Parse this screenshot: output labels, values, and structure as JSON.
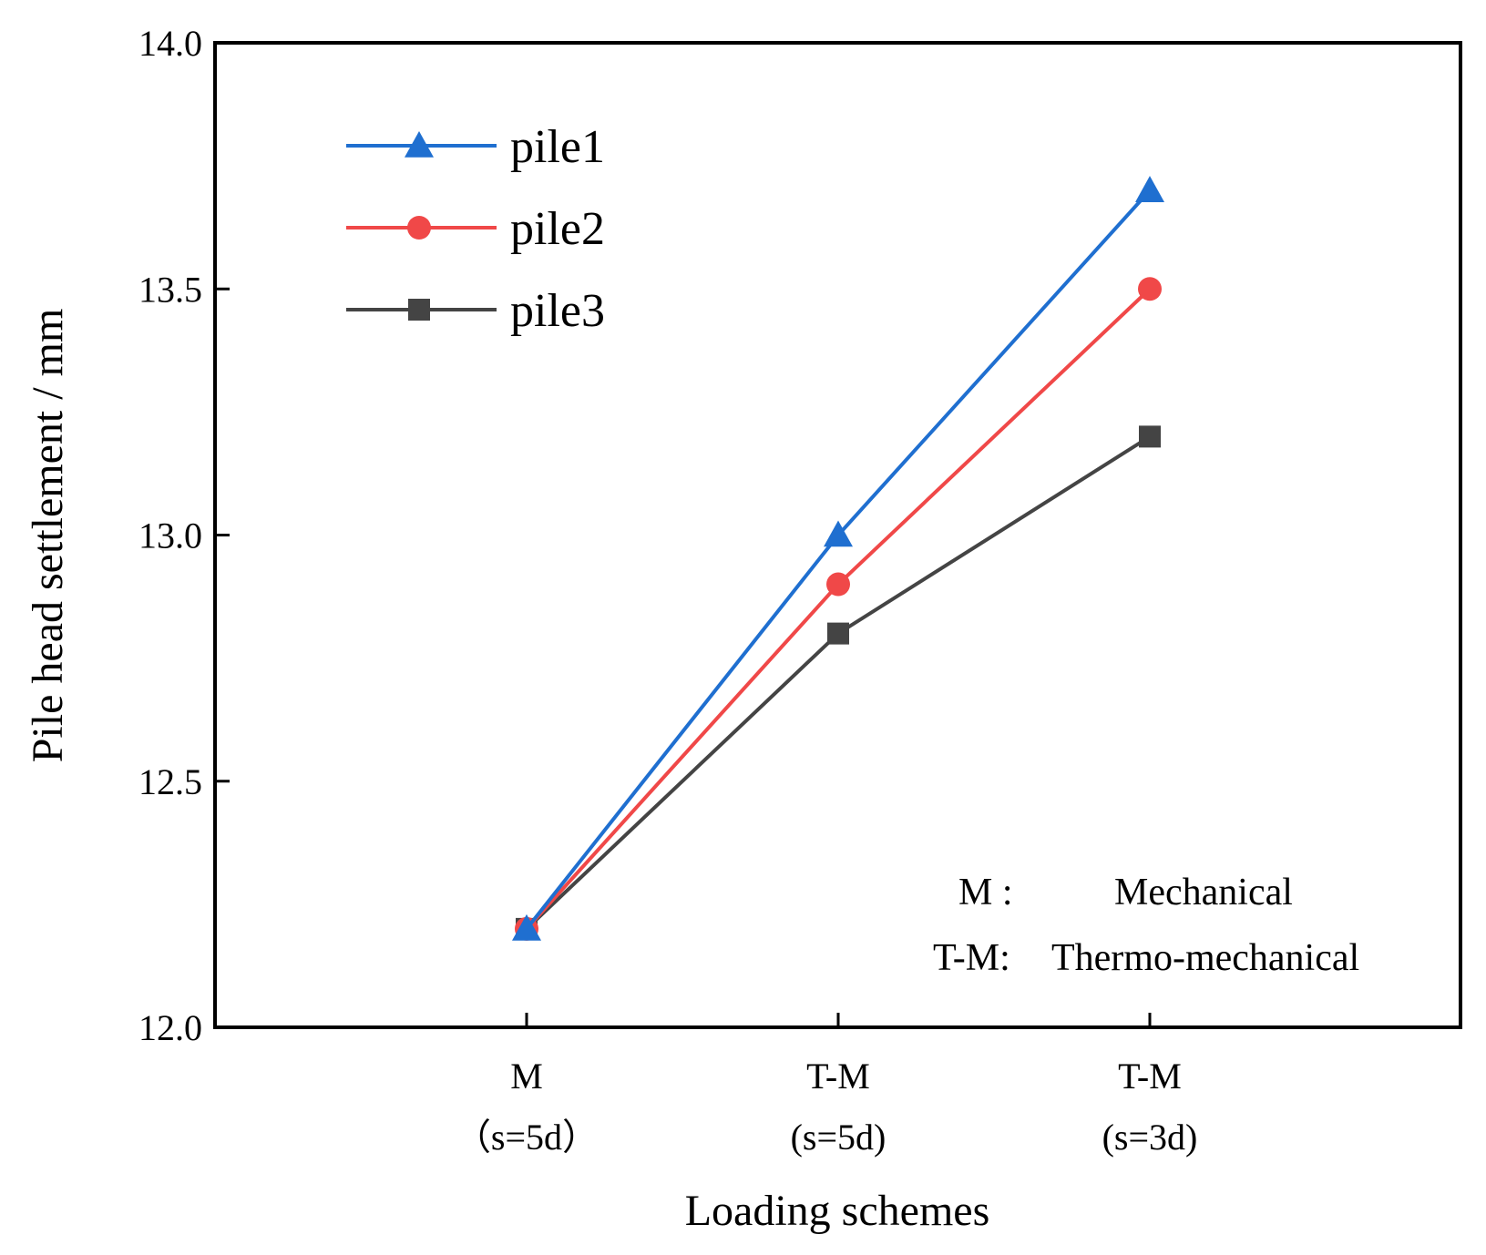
{
  "chart_data": {
    "type": "line",
    "title": "",
    "xlabel": "Loading schemes",
    "ylabel": "Pile head settlement / mm",
    "categories": [
      {
        "line1": "M",
        "line2": "（s=5d）"
      },
      {
        "line1": "T-M",
        "line2": "(s=5d)"
      },
      {
        "line1": "T-M",
        "line2": "(s=3d)"
      }
    ],
    "ylim": [
      12.0,
      14.0
    ],
    "yticks": [
      12.0,
      12.5,
      13.0,
      13.5,
      14.0
    ],
    "ytick_labels": [
      "12.0",
      "12.5",
      "13.0",
      "13.5",
      "14.0"
    ],
    "grid": false,
    "legend_position": "top-left",
    "series": [
      {
        "name": "pile1",
        "color": "#1f6fd0",
        "marker": "triangle",
        "values": [
          12.2,
          13.0,
          13.7
        ]
      },
      {
        "name": "pile2",
        "color": "#f04848",
        "marker": "circle",
        "values": [
          12.2,
          12.9,
          13.5
        ]
      },
      {
        "name": "pile3",
        "color": "#444444",
        "marker": "square",
        "values": [
          12.2,
          12.8,
          13.2
        ]
      }
    ],
    "annotations": [
      {
        "key": "M :",
        "desc": "Mechanical"
      },
      {
        "key": "T-M:",
        "desc": "Thermo-mechanical"
      }
    ]
  }
}
